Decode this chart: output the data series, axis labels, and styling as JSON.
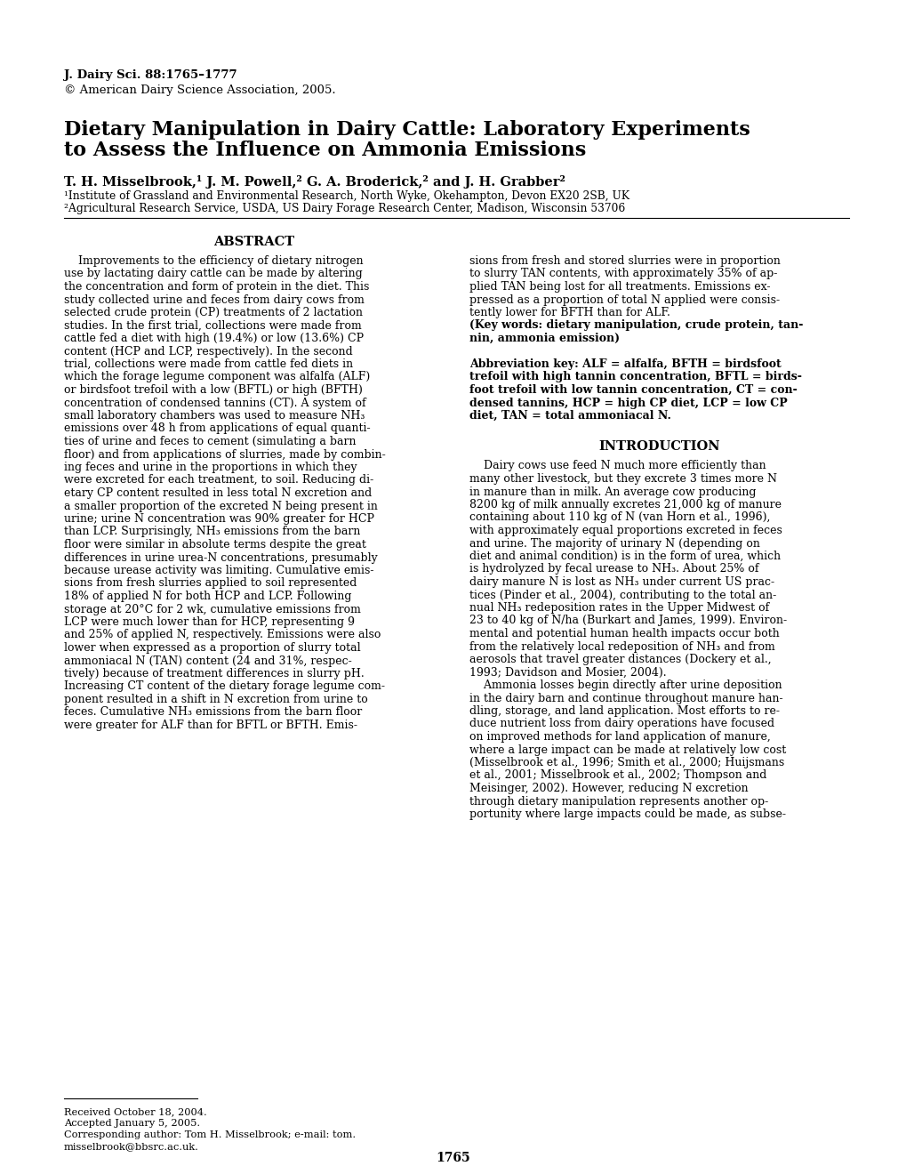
{
  "journal_line1": "J. Dairy Sci. 88:1765–1777",
  "journal_line2": "© American Dairy Science Association, 2005.",
  "title_line1": "Dietary Manipulation in Dairy Cattle: Laboratory Experiments",
  "title_line2": "to Assess the Influence on Ammonia Emissions",
  "authors": "T. H. Misselbrook,¹ J. M. Powell,² G. A. Broderick,² and J. H. Grabber²",
  "affil1": "¹Institute of Grassland and Environmental Research, North Wyke, Okehampton, Devon EX20 2SB, UK",
  "affil2": "²Agricultural Research Service, USDA, US Dairy Forage Research Center, Madison, Wisconsin 53706",
  "abstract_header": "ABSTRACT",
  "abstract_col1_lines": [
    "    Improvements to the efficiency of dietary nitrogen",
    "use by lactating dairy cattle can be made by altering",
    "the concentration and form of protein in the diet. This",
    "study collected urine and feces from dairy cows from",
    "selected crude protein (CP) treatments of 2 lactation",
    "studies. In the first trial, collections were made from",
    "cattle fed a diet with high (19.4%) or low (13.6%) CP",
    "content (HCP and LCP, respectively). In the second",
    "trial, collections were made from cattle fed diets in",
    "which the forage legume component was alfalfa (ALF)",
    "or birdsfoot trefoil with a low (BFTL) or high (BFTH)",
    "concentration of condensed tannins (CT). A system of",
    "small laboratory chambers was used to measure NH₃",
    "emissions over 48 h from applications of equal quanti-",
    "ties of urine and feces to cement (simulating a barn",
    "floor) and from applications of slurries, made by combin-",
    "ing feces and urine in the proportions in which they",
    "were excreted for each treatment, to soil. Reducing di-",
    "etary CP content resulted in less total N excretion and",
    "a smaller proportion of the excreted N being present in",
    "urine; urine N concentration was 90% greater for HCP",
    "than LCP. Surprisingly, NH₃ emissions from the barn",
    "floor were similar in absolute terms despite the great",
    "differences in urine urea-N concentrations, presumably",
    "because urease activity was limiting. Cumulative emis-",
    "sions from fresh slurries applied to soil represented",
    "18% of applied N for both HCP and LCP. Following",
    "storage at 20°C for 2 wk, cumulative emissions from",
    "LCP were much lower than for HCP, representing 9",
    "and 25% of applied N, respectively. Emissions were also",
    "lower when expressed as a proportion of slurry total",
    "ammoniacal N (TAN) content (24 and 31%, respec-",
    "tively) because of treatment differences in slurry pH.",
    "Increasing CT content of the dietary forage legume com-",
    "ponent resulted in a shift in N excretion from urine to",
    "feces. Cumulative NH₃ emissions from the barn floor",
    "were greater for ALF than for BFTL or BFTH. Emis-"
  ],
  "abstract_col2_lines": [
    "sions from fresh and stored slurries were in proportion",
    "to slurry TAN contents, with approximately 35% of ap-",
    "plied TAN being lost for all treatments. Emissions ex-",
    "pressed as a proportion of total N applied were consis-",
    "tently lower for BFTH than for ALF.",
    "(Key words: dietary manipulation, crude protein, tan-",
    "nin, ammonia emission)",
    "",
    "Abbreviation key: ALF = alfalfa, BFTH = birdsfoot",
    "trefoil with high tannin concentration, BFTL = birds-",
    "foot trefoil with low tannin concentration, CT = con-",
    "densed tannins, HCP = high CP diet, LCP = low CP",
    "diet, TAN = total ammoniacal N."
  ],
  "abstract_col2_bold_lines": [
    5,
    6,
    8,
    9,
    10,
    11,
    12
  ],
  "intro_header": "INTRODUCTION",
  "intro_col2_lines": [
    "    Dairy cows use feed N much more efficiently than",
    "many other livestock, but they excrete 3 times more N",
    "in manure than in milk. An average cow producing",
    "8200 kg of milk annually excretes 21,000 kg of manure",
    "containing about 110 kg of N (van Horn et al., 1996),",
    "with approximately equal proportions excreted in feces",
    "and urine. The majority of urinary N (depending on",
    "diet and animal condition) is in the form of urea, which",
    "is hydrolyzed by fecal urease to NH₃. About 25% of",
    "dairy manure N is lost as NH₃ under current US prac-",
    "tices (Pinder et al., 2004), contributing to the total an-",
    "nual NH₃ redeposition rates in the Upper Midwest of",
    "23 to 40 kg of N/ha (Burkart and James, 1999). Environ-",
    "mental and potential human health impacts occur both",
    "from the relatively local redeposition of NH₃ and from",
    "aerosols that travel greater distances (Dockery et al.,",
    "1993; Davidson and Mosier, 2004).",
    "    Ammonia losses begin directly after urine deposition",
    "in the dairy barn and continue throughout manure han-",
    "dling, storage, and land application. Most efforts to re-",
    "duce nutrient loss from dairy operations have focused",
    "on improved methods for land application of manure,",
    "where a large impact can be made at relatively low cost",
    "(Misselbrook et al., 1996; Smith et al., 2000; Huijsmans",
    "et al., 2001; Misselbrook et al., 2002; Thompson and",
    "Meisinger, 2002). However, reducing N excretion",
    "through dietary manipulation represents another op-",
    "portunity where large impacts could be made, as subse-"
  ],
  "footnote_line1": "Received October 18, 2004.",
  "footnote_line2": "Accepted January 5, 2005.",
  "footnote_line3": "Corresponding author: Tom H. Misselbrook; e-mail: tom.",
  "footnote_line4": "misselbrook@bbsrc.ac.uk.",
  "page_number": "1765",
  "background_color": "#ffffff"
}
